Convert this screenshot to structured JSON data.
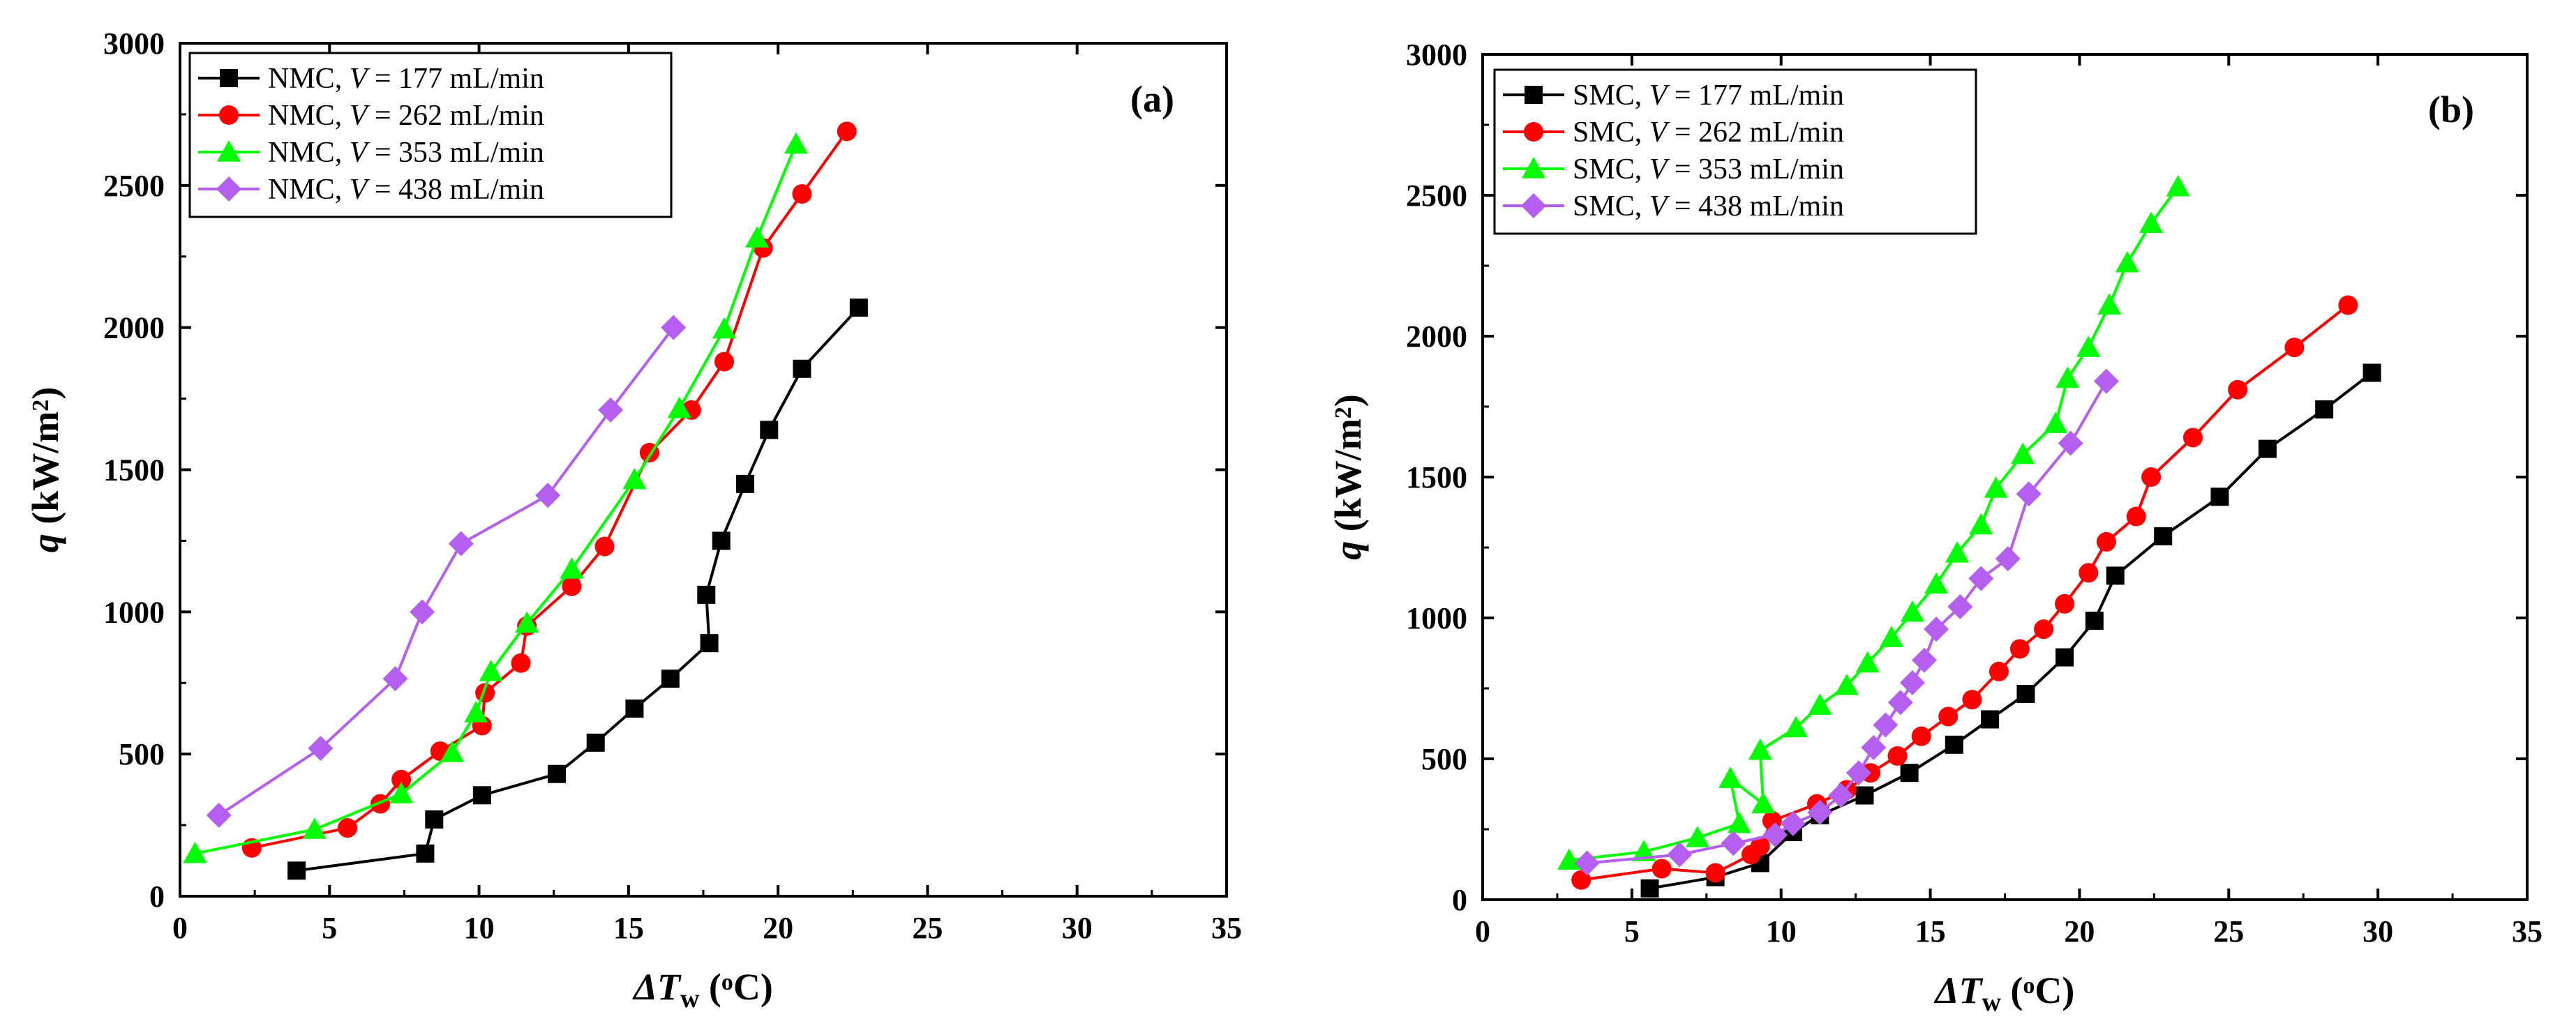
{
  "chart_data": [
    {
      "type": "line",
      "panel_label": "(a)",
      "xlabel": {
        "symbol": "ΔT",
        "subscript": "w",
        "unit_open": " (",
        "unit_sup": "o",
        "unit_close": "C)"
      },
      "ylabel": {
        "symbol": "q",
        "unit_open": " (kW/m",
        "unit_sup": "2",
        "unit_close": ")"
      },
      "xlim": [
        0,
        35
      ],
      "ylim": [
        0,
        3000
      ],
      "xticks": [
        0,
        5,
        10,
        15,
        20,
        25,
        30,
        35
      ],
      "yticks": [
        0,
        500,
        1000,
        1500,
        2000,
        2500,
        3000
      ],
      "legend_position": "top-left",
      "series": [
        {
          "prefix": "NMC, ",
          "var": "V",
          "suffix": " = 177 mL/min",
          "color": "#000000",
          "marker": "square",
          "x": [
            3.9,
            8.2,
            8.5,
            10.1,
            12.6,
            13.9,
            15.2,
            16.4,
            17.7,
            17.6,
            18.1,
            18.9,
            19.7,
            20.8,
            22.7
          ],
          "y": [
            90,
            150,
            270,
            355,
            430,
            540,
            660,
            765,
            890,
            1060,
            1250,
            1450,
            1640,
            1855,
            2070
          ]
        },
        {
          "prefix": "NMC, ",
          "var": "V",
          "suffix": " = 262 mL/min",
          "color": "#ff0000",
          "marker": "circle",
          "x": [
            2.4,
            5.6,
            6.7,
            7.4,
            8.7,
            10.1,
            10.2,
            11.4,
            11.6,
            13.1,
            14.2,
            15.7,
            17.1,
            18.2,
            19.5,
            20.8,
            22.3
          ],
          "y": [
            170,
            240,
            325,
            410,
            510,
            600,
            715,
            820,
            950,
            1090,
            1230,
            1560,
            1710,
            1880,
            2280,
            2470,
            2690
          ]
        },
        {
          "prefix": "NMC, ",
          "var": "V",
          "suffix": " = 353 mL/min",
          "color": "#00ff00",
          "marker": "triangle",
          "x": [
            0.5,
            4.5,
            7.4,
            9.1,
            9.9,
            10.4,
            11.6,
            13.1,
            15.2,
            16.7,
            18.2,
            19.3,
            20.6
          ],
          "y": [
            150,
            235,
            360,
            505,
            645,
            790,
            960,
            1150,
            1465,
            1715,
            1995,
            2315,
            2645
          ]
        },
        {
          "prefix": "NMC, ",
          "var": "V",
          "suffix": " = 438 mL/min",
          "color": "#b45ff0",
          "marker": "diamond",
          "x": [
            1.3,
            4.7,
            7.2,
            8.1,
            9.4,
            12.3,
            14.4,
            16.5
          ],
          "y": [
            285,
            520,
            765,
            1000,
            1240,
            1410,
            1710,
            2000
          ]
        }
      ]
    },
    {
      "type": "line",
      "panel_label": "(b)",
      "xlabel": {
        "symbol": "ΔT",
        "subscript": "w",
        "unit_open": " (",
        "unit_sup": "o",
        "unit_close": "C)"
      },
      "ylabel": {
        "symbol": "q",
        "unit_open": " (kW/m",
        "unit_sup": "2",
        "unit_close": ")"
      },
      "xlim": [
        0,
        35
      ],
      "ylim": [
        0,
        3000
      ],
      "xticks": [
        0,
        5,
        10,
        15,
        20,
        25,
        30,
        35
      ],
      "yticks": [
        0,
        500,
        1000,
        1500,
        2000,
        2500,
        3000
      ],
      "legend_position": "top-left",
      "series": [
        {
          "prefix": "SMC, ",
          "var": "V",
          "suffix": " = 177 mL/min",
          "color": "#000000",
          "marker": "square",
          "x": [
            5.6,
            7.8,
            9.3,
            10.4,
            11.3,
            12.8,
            14.3,
            15.8,
            17.0,
            18.2,
            19.5,
            20.5,
            21.2,
            22.8,
            24.7,
            26.3,
            28.2,
            29.8
          ],
          "y": [
            40,
            80,
            130,
            240,
            300,
            370,
            450,
            550,
            640,
            730,
            860,
            990,
            1150,
            1290,
            1430,
            1600,
            1740,
            1870
          ]
        },
        {
          "prefix": "SMC, ",
          "var": "V",
          "suffix": " = 262 mL/min",
          "color": "#ff0000",
          "marker": "circle",
          "x": [
            3.3,
            6.0,
            7.8,
            9.0,
            9.3,
            9.7,
            11.2,
            12.2,
            13.0,
            13.9,
            14.7,
            15.6,
            16.4,
            17.3,
            18.0,
            18.8,
            19.5,
            20.3,
            20.9,
            21.9,
            22.4,
            23.8,
            25.3,
            27.2,
            29.0
          ],
          "y": [
            70,
            110,
            95,
            160,
            190,
            280,
            340,
            390,
            450,
            510,
            580,
            650,
            710,
            810,
            890,
            960,
            1050,
            1160,
            1270,
            1360,
            1500,
            1640,
            1810,
            1960,
            2110
          ]
        },
        {
          "prefix": "SMC, ",
          "var": "V",
          "suffix": " = 353 mL/min",
          "color": "#00ff00",
          "marker": "triangle",
          "x": [
            2.9,
            5.4,
            7.2,
            8.6,
            8.3,
            9.4,
            9.3,
            10.5,
            11.3,
            12.2,
            12.9,
            13.7,
            14.4,
            15.2,
            15.9,
            16.7,
            17.2,
            18.1,
            19.2,
            19.6,
            20.3,
            21.0,
            21.6,
            22.4,
            23.3
          ],
          "y": [
            140,
            170,
            220,
            270,
            430,
            340,
            530,
            610,
            690,
            760,
            840,
            930,
            1020,
            1120,
            1230,
            1330,
            1460,
            1580,
            1690,
            1850,
            1960,
            2110,
            2260,
            2400,
            2530
          ]
        },
        {
          "prefix": "SMC, ",
          "var": "V",
          "suffix": " = 438 mL/min",
          "color": "#b45ff0",
          "marker": "diamond",
          "x": [
            3.5,
            6.6,
            8.4,
            9.8,
            10.4,
            11.3,
            12.0,
            12.6,
            13.1,
            13.5,
            14.0,
            14.4,
            14.8,
            15.2,
            16.0,
            16.7,
            17.6,
            18.3,
            19.7,
            20.9
          ],
          "y": [
            130,
            160,
            200,
            230,
            270,
            310,
            370,
            450,
            540,
            620,
            700,
            770,
            850,
            960,
            1040,
            1140,
            1210,
            1440,
            1620,
            1840
          ]
        }
      ]
    }
  ]
}
